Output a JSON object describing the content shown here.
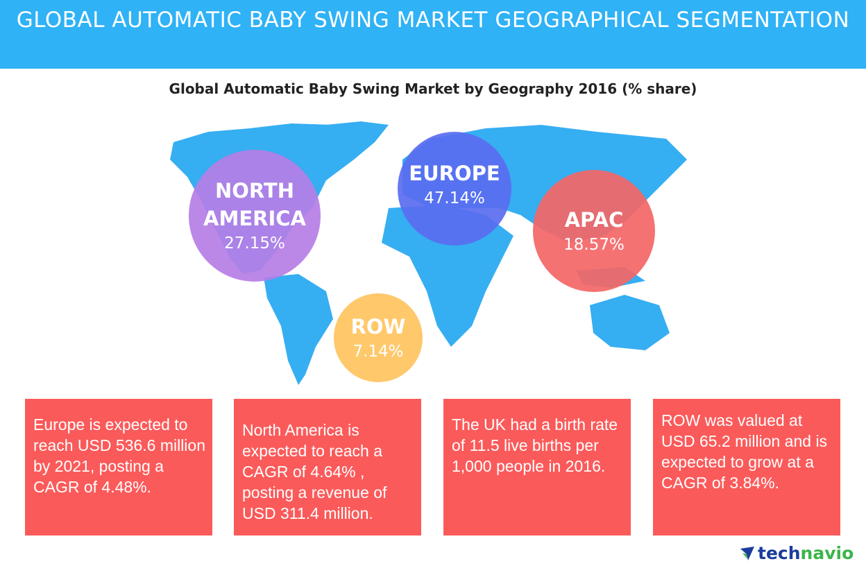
{
  "header": {
    "title": "GLOBAL AUTOMATIC BABY SWING MARKET GEOGRAPHICAL SEGMENTATION"
  },
  "chart_data": {
    "type": "bubble-map",
    "title": "Global Automatic Baby Swing Market by Geography 2016 (% share)",
    "categories": [
      "NORTH AMERICA",
      "EUROPE",
      "APAC",
      "ROW"
    ],
    "values": [
      "27.15%",
      "47.14%",
      "18.57%",
      "7.14%"
    ],
    "colors": [
      "#b57ee6",
      "#5a6cf0",
      "#f46666",
      "#fec86b"
    ]
  },
  "facts": [
    "Europe is expected to reach USD 536.6 million by 2021, posting a CAGR of 4.48%.",
    "North America is expected to reach a CAGR of 4.64% , posting a revenue of USD 311.4 million.",
    "The UK had a birth rate of 11.5 live births per 1,000 people in 2016.",
    "ROW was valued at USD 65.2 million and is expected to grow at a CAGR of  3.84%."
  ],
  "logo": {
    "part1": "tech",
    "part2": "navio"
  },
  "colors": {
    "header": "#2fb2f6",
    "map": "#36aef2",
    "fact_box": "#fb5a5a"
  }
}
